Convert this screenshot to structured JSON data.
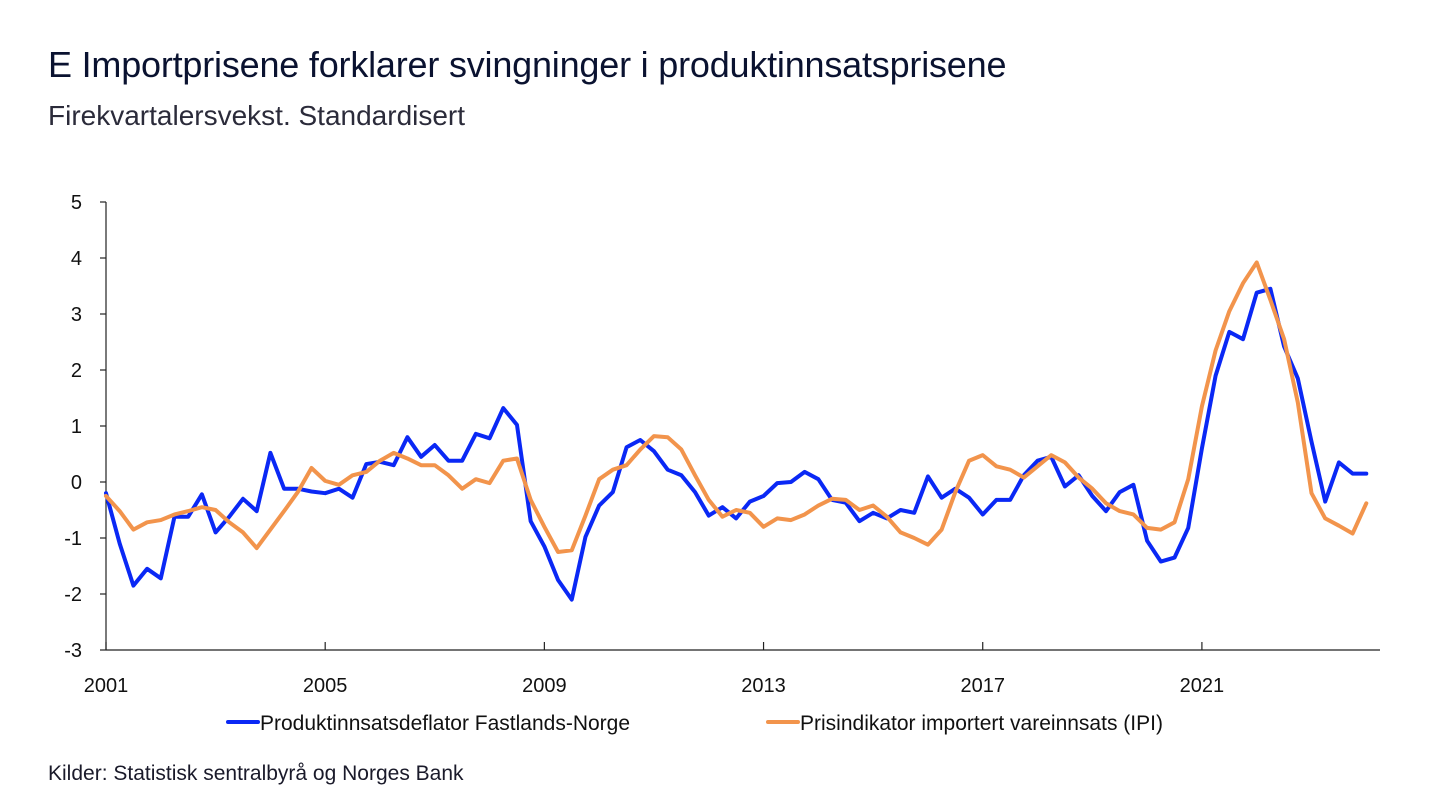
{
  "header": {
    "title": "E Importprisene forklarer svingninger i produktinnsatsprisene",
    "subtitle": "Firekvartalersvekst. Standardisert"
  },
  "footer": {
    "source": "Kilder: Statistisk sentralbyrå og Norges Bank"
  },
  "chart_data": {
    "type": "line",
    "title": "E Importprisene forklarer svingninger i produktinnsatsprisene",
    "subtitle": "Firekvartalersvekst. Standardisert",
    "xlabel": "",
    "ylabel": "",
    "x_start_year": 2001,
    "quarters_per_year": 4,
    "xlim": [
      2001,
      2024.25
    ],
    "ylim": [
      -3,
      5
    ],
    "yticks": [
      5,
      4,
      3,
      2,
      1,
      0,
      -1,
      -2,
      -3
    ],
    "ytick_labels": [
      "5",
      "4",
      "3",
      "2",
      "1",
      "0",
      "-1",
      "-2",
      "-3"
    ],
    "xticks": [
      2001,
      2005,
      2009,
      2013,
      2017,
      2021
    ],
    "xtick_labels": [
      "2001",
      "2005",
      "2009",
      "2013",
      "2017",
      "2021"
    ],
    "grid": false,
    "legend_position": "bottom",
    "series": [
      {
        "name": "Produktinnsatsdeflator Fastlands-Norge",
        "color": "#0a28f5",
        "values": [
          -0.2,
          -1.1,
          -1.85,
          -1.55,
          -1.72,
          -0.62,
          -0.62,
          -0.22,
          -0.9,
          -0.62,
          -0.3,
          -0.52,
          0.52,
          -0.12,
          -0.12,
          -0.17,
          -0.2,
          -0.12,
          -0.28,
          0.32,
          0.36,
          0.3,
          0.8,
          0.45,
          0.66,
          0.38,
          0.38,
          0.86,
          0.78,
          1.32,
          1.02,
          -0.7,
          -1.15,
          -1.75,
          -2.1,
          -0.98,
          -0.42,
          -0.18,
          0.62,
          0.75,
          0.55,
          0.22,
          0.12,
          -0.18,
          -0.6,
          -0.45,
          -0.65,
          -0.35,
          -0.25,
          -0.02,
          0.0,
          0.18,
          0.05,
          -0.32,
          -0.37,
          -0.7,
          -0.55,
          -0.65,
          -0.5,
          -0.55,
          0.1,
          -0.28,
          -0.12,
          -0.28,
          -0.58,
          -0.32,
          -0.32,
          0.12,
          0.38,
          0.45,
          -0.08,
          0.12,
          -0.25,
          -0.52,
          -0.18,
          -0.05,
          -1.05,
          -1.42,
          -1.35,
          -0.82,
          0.6,
          1.9,
          2.68,
          2.55,
          3.38,
          3.45,
          2.42,
          1.85,
          0.72,
          -0.35,
          0.35,
          0.15,
          0.15
        ]
      },
      {
        "name": "Prisindikator importert vareinnsats (IPI)",
        "color": "#f2944c",
        "values": [
          -0.25,
          -0.52,
          -0.85,
          -0.72,
          -0.68,
          -0.58,
          -0.52,
          -0.45,
          -0.5,
          -0.72,
          -0.9,
          -1.18,
          -0.85,
          -0.52,
          -0.18,
          0.25,
          0.02,
          -0.05,
          0.12,
          0.18,
          0.38,
          0.52,
          0.42,
          0.3,
          0.3,
          0.12,
          -0.12,
          0.05,
          -0.02,
          0.38,
          0.42,
          -0.32,
          -0.8,
          -1.25,
          -1.22,
          -0.6,
          0.05,
          0.22,
          0.3,
          0.58,
          0.82,
          0.8,
          0.58,
          0.12,
          -0.32,
          -0.62,
          -0.5,
          -0.55,
          -0.8,
          -0.65,
          -0.68,
          -0.58,
          -0.42,
          -0.3,
          -0.32,
          -0.5,
          -0.42,
          -0.62,
          -0.9,
          -1.0,
          -1.12,
          -0.85,
          -0.18,
          0.38,
          0.48,
          0.28,
          0.22,
          0.08,
          0.28,
          0.48,
          0.35,
          0.08,
          -0.12,
          -0.38,
          -0.52,
          -0.58,
          -0.82,
          -0.85,
          -0.72,
          0.05,
          1.35,
          2.35,
          3.05,
          3.55,
          3.92,
          3.25,
          2.55,
          1.42,
          -0.2,
          -0.65,
          -0.78,
          -0.92,
          -0.38
        ]
      }
    ]
  }
}
